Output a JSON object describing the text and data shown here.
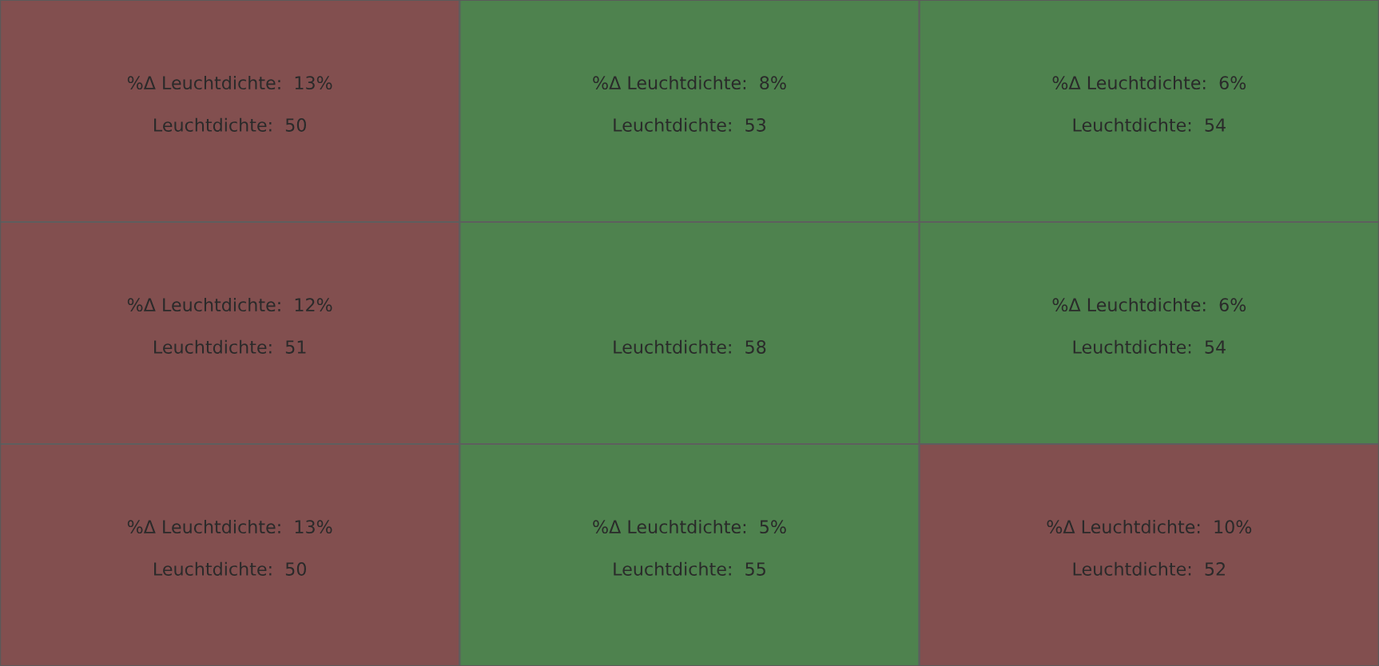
{
  "chart_data": {
    "type": "heatmap",
    "categories": [
      null,
      null,
      null
    ],
    "y_categories": [
      null,
      null,
      null
    ],
    "cells": [
      [
        50,
        53,
        54
      ],
      [
        51,
        58,
        54
      ],
      [
        50,
        55,
        52
      ]
    ],
    "cell_labels": [
      [
        "Leuchtdichte:  50",
        "Leuchtdichte:  53",
        "Leuchtdichte:  54"
      ],
      [
        "Leuchtdichte:  51",
        "Leuchtdichte:  58",
        "Leuchtdichte:  54"
      ],
      [
        "Leuchtdichte:  50",
        "Leuchtdichte:  55",
        "Leuchtdichte:  52"
      ]
    ],
    "annotations": [
      "%Δ Leuchtdichte:  13%",
      "%Δ Leuchtdichte:  8%",
      "%Δ Leuchtdichte:  6%",
      "%Δ Leuchtdichte:  12%",
      null,
      "%Δ Leuchtdichte:  6%",
      "%Δ Leuchtdichte:  13%",
      "%Δ Leuchtdichte:  5%",
      "%Δ Leuchtdichte:  10%"
    ],
    "colors": [
      [
        "#824f4f",
        "#4e824e",
        "#4e824e"
      ],
      [
        "#824f4f",
        "#4e824e",
        "#4e824e"
      ],
      [
        "#824f4f",
        "#4e824e",
        "#824f4f"
      ]
    ]
  }
}
